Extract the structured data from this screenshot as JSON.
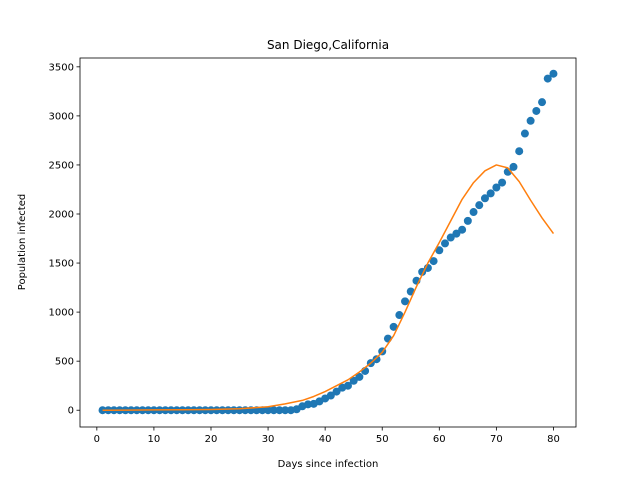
{
  "chart_data": {
    "type": "scatter",
    "title": "San Diego,California",
    "xlabel": "Days since infection",
    "ylabel": "Population infected",
    "xlim": [
      -2.95,
      83.95
    ],
    "ylim": [
      -171,
      3590
    ],
    "xticks": [
      0,
      10,
      20,
      30,
      40,
      50,
      60,
      70,
      80
    ],
    "yticks": [
      0,
      500,
      1000,
      1500,
      2000,
      2500,
      3000,
      3500
    ],
    "grid": false,
    "colors": {
      "observed": "#1f77b4",
      "fit": "#ff7f0e"
    },
    "series": [
      {
        "kind": "scatter",
        "x": [
          1,
          2,
          3,
          4,
          5,
          6,
          7,
          8,
          9,
          10,
          11,
          12,
          13,
          14,
          15,
          16,
          17,
          18,
          19,
          20,
          21,
          22,
          23,
          24,
          25,
          26,
          27,
          28,
          29,
          30,
          31,
          32,
          33,
          34,
          35,
          36,
          37,
          38,
          39,
          40,
          41,
          42,
          43,
          44,
          45,
          46,
          47,
          48,
          49,
          50,
          51,
          52,
          53,
          54,
          55,
          56,
          57,
          58,
          59,
          60,
          61,
          62,
          63,
          64,
          65,
          66,
          67,
          68,
          69,
          70,
          71,
          72,
          73,
          74,
          75,
          76,
          77,
          78,
          79,
          80
        ],
        "y": [
          0,
          0,
          0,
          0,
          0,
          0,
          0,
          0,
          0,
          0,
          0,
          0,
          0,
          0,
          0,
          0,
          0,
          0,
          0,
          0,
          0,
          0,
          0,
          0,
          0,
          0,
          0,
          0,
          0,
          0,
          0,
          0,
          0,
          0,
          10,
          40,
          60,
          65,
          90,
          120,
          150,
          190,
          230,
          250,
          300,
          340,
          400,
          480,
          520,
          600,
          730,
          850,
          970,
          1110,
          1210,
          1320,
          1410,
          1450,
          1520,
          1630,
          1700,
          1760,
          1800,
          1840,
          1930,
          2020,
          2090,
          2160,
          2210,
          2270,
          2320,
          2430,
          2480,
          2640,
          2820,
          2950,
          3050,
          3140,
          3380,
          3430
        ]
      },
      {
        "kind": "line",
        "x": [
          1,
          5,
          10,
          15,
          20,
          25,
          30,
          33,
          36,
          38,
          40,
          42,
          44,
          46,
          48,
          50,
          52,
          54,
          56,
          58,
          60,
          62,
          64,
          66,
          68,
          70,
          72,
          74,
          76,
          78,
          80
        ],
        "y": [
          0,
          1,
          3,
          5,
          8,
          15,
          35,
          65,
          100,
          140,
          190,
          250,
          310,
          390,
          480,
          590,
          760,
          1000,
          1260,
          1500,
          1710,
          1930,
          2150,
          2320,
          2440,
          2500,
          2470,
          2330,
          2140,
          1960,
          1800
        ]
      }
    ]
  }
}
